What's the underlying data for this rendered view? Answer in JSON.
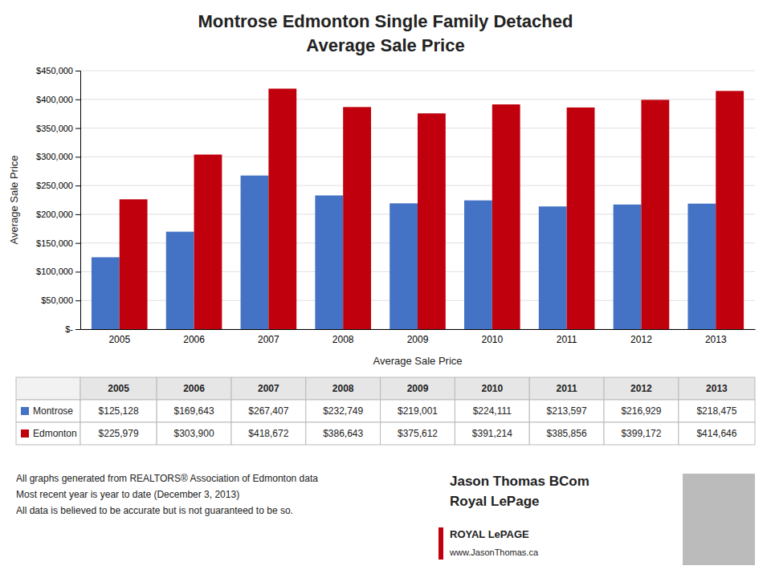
{
  "chart_data": {
    "type": "bar",
    "title": "Montrose Edmonton Single Family Detached",
    "subtitle": "Average Sale Price",
    "x_label": "Average Sale Price",
    "y_label": "Average Sale Price",
    "categories": [
      "2005",
      "2006",
      "2007",
      "2008",
      "2009",
      "2010",
      "2011",
      "2012",
      "2013"
    ],
    "series": [
      {
        "name": "Montrose",
        "color": "#4472C4",
        "values": [
          125128,
          169643,
          267407,
          232749,
          219001,
          224111,
          213597,
          216929,
          218475
        ],
        "value_labels": [
          "$125,128",
          "$169,643",
          "$267,407",
          "$232,749",
          "$219,001",
          "$224,111",
          "$213,597",
          "$216,929",
          "$218,475"
        ]
      },
      {
        "name": "Edmonton",
        "color": "#C0000C",
        "values": [
          225979,
          303900,
          418672,
          386643,
          375612,
          391214,
          385856,
          399172,
          414646
        ],
        "value_labels": [
          "$225,979",
          "$303,900",
          "$418,672",
          "$386,643",
          "$375,612",
          "$391,214",
          "$385,856",
          "$399,172",
          "$414,646"
        ]
      }
    ],
    "ylim": [
      0,
      450000
    ],
    "yticks": [
      {
        "value": 0,
        "label": "$-"
      },
      {
        "value": 50000,
        "label": "$50,000"
      },
      {
        "value": 100000,
        "label": "$100,000"
      },
      {
        "value": 150000,
        "label": "$150,000"
      },
      {
        "value": 200000,
        "label": "$200,000"
      },
      {
        "value": 250000,
        "label": "$250,000"
      },
      {
        "value": 300000,
        "label": "$300,000"
      },
      {
        "value": 350000,
        "label": "$350,000"
      },
      {
        "value": 400000,
        "label": "$400,000"
      },
      {
        "value": 450000,
        "label": "$450,000"
      }
    ],
    "grid": true,
    "annotations": [
      "All graphs generated from REALTORS® Association of Edmonton data",
      "Most recent year is year to date (December 3, 2013)",
      "All data is believed to be accurate but is not guaranteed to be so.",
      "Jason Thomas BCom",
      "Royal LePage",
      "ROYAL LePAGE",
      "www.JasonThomas.ca"
    ]
  }
}
